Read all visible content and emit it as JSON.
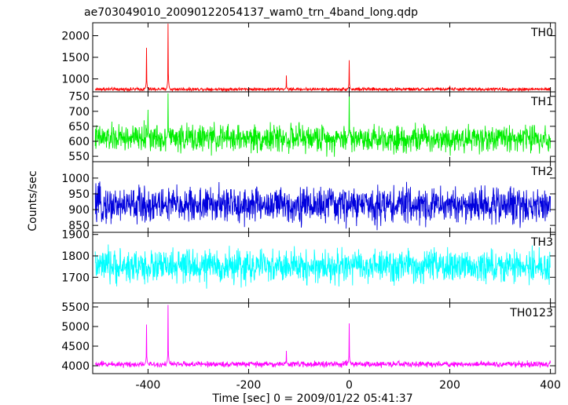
{
  "chart_data": {
    "type": "line",
    "title": "ae703049010_20090122054137_wam0_trn_4band_long.qdp",
    "xlabel": "Time [sec] 0 = 2009/01/22 05:41:37",
    "ylabel": "Counts/sec",
    "xlim": [
      -510,
      410
    ],
    "x_ticks": [
      -400,
      -200,
      0,
      200,
      400
    ],
    "grid": false,
    "legend": "none",
    "panels": [
      {
        "name": "TH0",
        "color": "#ff0000",
        "ylim": [
          700,
          2300
        ],
        "y_ticks": [
          1000,
          1500,
          2000
        ],
        "baseline": 760,
        "noise": 18,
        "spikes": [
          {
            "x": -403,
            "y": 1720
          },
          {
            "x": -360,
            "y": 2280
          },
          {
            "x": -125,
            "y": 1080
          },
          {
            "x": 0,
            "y": 1430
          },
          {
            "x": 200,
            "y": 830
          }
        ]
      },
      {
        "name": "TH1",
        "color": "#00ee00",
        "ylim": [
          532,
          765
        ],
        "y_ticks": [
          550,
          600,
          650,
          700,
          750
        ],
        "baseline": 610,
        "noise": 22,
        "spikes": [
          {
            "x": -400,
            "y": 705
          },
          {
            "x": -360,
            "y": 760
          },
          {
            "x": 0,
            "y": 760
          }
        ]
      },
      {
        "name": "TH2",
        "color": "#0000dd",
        "ylim": [
          828,
          1052
        ],
        "y_ticks": [
          850,
          900,
          950,
          1000
        ],
        "baseline": 915,
        "noise": 28
      },
      {
        "name": "TH3",
        "color": "#00ffff",
        "ylim": [
          1580,
          1910
        ],
        "y_ticks": [
          1700,
          1800,
          1900
        ],
        "baseline": 1750,
        "noise": 38
      },
      {
        "name": "TH0123",
        "color": "#ff00ff",
        "ylim": [
          3800,
          5600
        ],
        "y_ticks": [
          4000,
          4500,
          5000,
          5500
        ],
        "baseline": 4040,
        "noise": 35,
        "spikes": [
          {
            "x": -403,
            "y": 5050
          },
          {
            "x": -360,
            "y": 5550
          },
          {
            "x": -125,
            "y": 4380
          },
          {
            "x": 0,
            "y": 5080
          }
        ]
      }
    ]
  }
}
